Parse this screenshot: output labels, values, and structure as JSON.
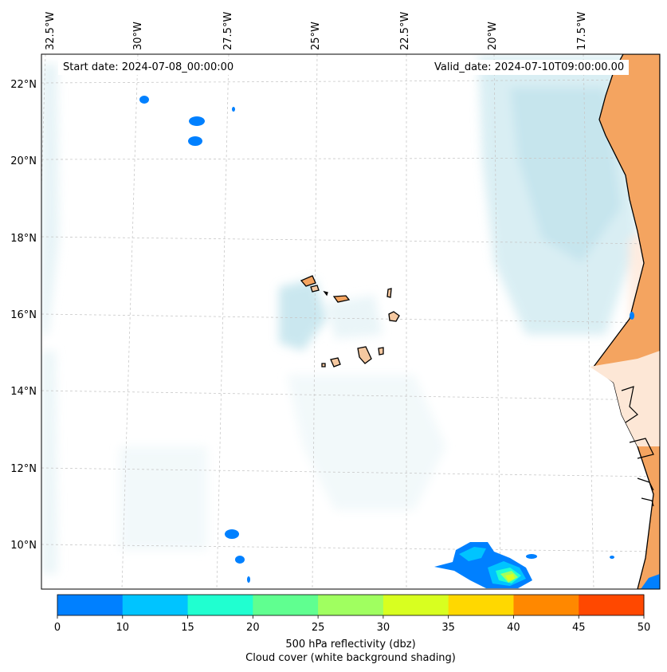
{
  "map": {
    "start_date_label": "Start date: 2024-07-08_00:00:00",
    "valid_date_label": "Valid_date: 2024-07-10T09:00:00.00",
    "lon_labels": [
      "32.5°W",
      "30°W",
      "27.5°W",
      "25°W",
      "22.5°W",
      "20°W",
      "17.5°W"
    ],
    "lat_labels": [
      "22°N",
      "20°N",
      "18°N",
      "16°N",
      "14°N",
      "12°N",
      "10°N"
    ],
    "land_color": "#f4a460",
    "island_color": "#f5c8a0",
    "cloud_color": "#a9d8e4"
  },
  "colorbar": {
    "ticks": [
      "0",
      "10",
      "15",
      "20",
      "25",
      "30",
      "35",
      "40",
      "45",
      "50"
    ],
    "colors": [
      "#0080ff",
      "#00c4ff",
      "#20ffd0",
      "#60ff90",
      "#a0ff60",
      "#d8ff20",
      "#ffd800",
      "#ff8800",
      "#ff4800"
    ],
    "label": "500 hPa reflectivity (dbz)",
    "sublabel": "Cloud cover (white background shading)"
  }
}
